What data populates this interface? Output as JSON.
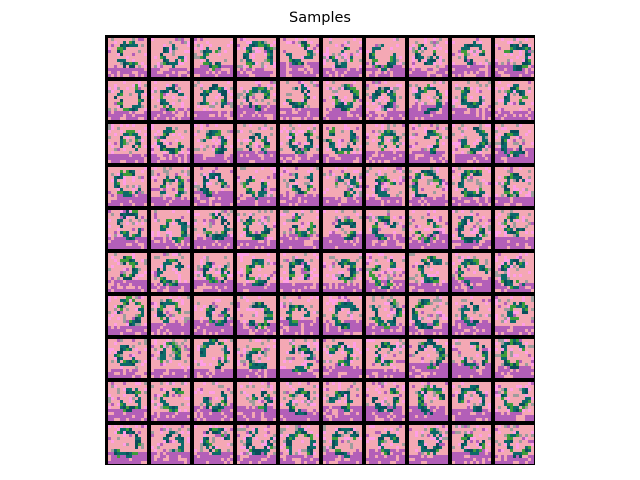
{
  "title": "Samples",
  "grid": {
    "rows": 10,
    "cols": 10
  },
  "palette": {
    "background_pink": "#f4a8b4",
    "magenta": "#b35fb8",
    "light_pink": "#ff9ee6",
    "gray": "#9c9c9c",
    "teal": "#0d6a6a",
    "dark_teal": "#0a4f5a",
    "green": "#3d9c3b",
    "border": "#000000"
  }
}
